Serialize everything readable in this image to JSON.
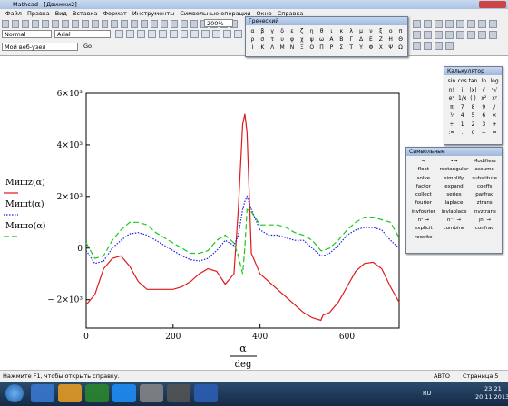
{
  "window": {
    "title": "Mathcad - [Движки2]"
  },
  "menu": [
    "Файл",
    "Правка",
    "Вид",
    "Вставка",
    "Формат",
    "Инструменты",
    "Символьные операции",
    "Окно",
    "Справка"
  ],
  "toolbar": {
    "style": "Normal",
    "font": "Arial",
    "zoom": "200%",
    "address": "Мой веб-узел",
    "go": "Go"
  },
  "palettes": {
    "greek": {
      "title": "Греческий",
      "rows": [
        [
          "α",
          "β",
          "γ",
          "δ",
          "ε",
          "ζ",
          "η",
          "θ",
          "ι",
          "κ",
          "λ",
          "μ",
          "ν",
          "ξ",
          "ο",
          "π"
        ],
        [
          "ρ",
          "σ",
          "τ",
          "υ",
          "φ",
          "χ",
          "ψ",
          "ω",
          "Α",
          "Β",
          "Γ",
          "Δ",
          "Ε",
          "Ζ",
          "Η",
          "Θ"
        ],
        [
          "Ι",
          "Κ",
          "Λ",
          "Μ",
          "Ν",
          "Ξ",
          "Ο",
          "Π",
          "Ρ",
          "Σ",
          "Τ",
          "Υ",
          "Φ",
          "Χ",
          "Ψ",
          "Ω"
        ]
      ]
    },
    "calc": {
      "title": "Калькулятор",
      "rows": [
        [
          "sin",
          "cos",
          "tan",
          "ln",
          "log"
        ],
        [
          "n!",
          "i",
          "|x|",
          "√",
          "ⁿ√"
        ],
        [
          "eˣ",
          "1/x",
          "( )",
          "x²",
          "xʸ"
        ],
        [
          "π",
          "7",
          "8",
          "9",
          "/"
        ],
        [
          "⅟",
          "4",
          "5",
          "6",
          "×"
        ],
        [
          "÷",
          "1",
          "2",
          "3",
          "+"
        ],
        [
          ":=",
          ".",
          "0",
          "−",
          "="
        ]
      ]
    },
    "symb": {
      "title": "Символьные",
      "rows": [
        [
          "→",
          "•→",
          "Modifiers"
        ],
        [
          "float",
          "rectangular",
          "assume"
        ],
        [
          "solve",
          "simplify",
          "substitute"
        ],
        [
          "factor",
          "expand",
          "coeffs"
        ],
        [
          "collect",
          "series",
          "parfrac"
        ],
        [
          "fourier",
          "laplace",
          "ztrans"
        ],
        [
          "invfourier",
          "invlaplace",
          "invztrans"
        ],
        [
          "n² →",
          "n⁻¹ →",
          "|n| →"
        ],
        [
          "explicit",
          "combine",
          "confrac"
        ],
        [
          "rewrite"
        ]
      ]
    }
  },
  "chart_data": {
    "type": "line",
    "x": [
      0,
      20,
      40,
      60,
      80,
      100,
      120,
      140,
      160,
      180,
      200,
      220,
      240,
      260,
      280,
      300,
      320,
      340,
      350,
      360,
      365,
      370,
      380,
      400,
      420,
      440,
      460,
      480,
      500,
      520,
      540,
      545,
      560,
      580,
      600,
      620,
      640,
      660,
      680,
      700,
      720
    ],
    "series": [
      {
        "name": "Мишz(α)",
        "color": "#e0181b",
        "dash": "solid",
        "values": [
          -2200,
          -1800,
          -800,
          -400,
          -300,
          -700,
          -1300,
          -1600,
          -1600,
          -1600,
          -1600,
          -1500,
          -1300,
          -1000,
          -800,
          -900,
          -1400,
          -1000,
          1500,
          4800,
          5200,
          4500,
          -200,
          -1000,
          -1300,
          -1600,
          -1900,
          -2200,
          -2500,
          -2700,
          -2800,
          -2600,
          -2500,
          -2100,
          -1500,
          -900,
          -600,
          -550,
          -800,
          -1500,
          -2100
        ]
      },
      {
        "name": "Мишt(α)",
        "color": "#1f1fe0",
        "dash": "dotted",
        "values": [
          -100,
          -600,
          -500,
          0,
          300,
          550,
          600,
          500,
          300,
          100,
          -100,
          -300,
          -450,
          -500,
          -400,
          -100,
          300,
          100,
          500,
          1500,
          1800,
          2000,
          1500,
          700,
          500,
          500,
          400,
          300,
          300,
          0,
          -300,
          -300,
          -200,
          100,
          500,
          700,
          800,
          800,
          700,
          300,
          0
        ]
      },
      {
        "name": "Мишо(α)",
        "color": "#19c819",
        "dash": "dashed",
        "values": [
          200,
          -400,
          -300,
          300,
          700,
          1000,
          1000,
          900,
          600,
          400,
          200,
          0,
          -200,
          -200,
          -100,
          300,
          500,
          200,
          -300,
          -1000,
          0,
          1500,
          1400,
          900,
          900,
          900,
          800,
          600,
          500,
          300,
          -100,
          -100,
          0,
          300,
          700,
          1000,
          1200,
          1200,
          1100,
          1000,
          400
        ]
      }
    ],
    "xlim": [
      0,
      720
    ],
    "ylim": [
      -3100,
      6000
    ],
    "xticks": [
      0,
      200,
      400,
      600
    ],
    "yticks": [
      {
        "value": -2000,
        "label": "− 2×10³"
      },
      0,
      {
        "value": 2000,
        "label": "2×10³"
      },
      {
        "value": 4000,
        "label": "4×10³"
      },
      {
        "value": 6000,
        "label": "6×10³"
      }
    ],
    "xlabel": "α",
    "xlabel_unit": "deg"
  },
  "status": {
    "hint": "Нажмите F1, чтобы открыть справку.",
    "mode": "АВТО",
    "page": "Страница 5"
  },
  "taskbar": {
    "lang": "RU",
    "time": "23:21",
    "date": "20.11.2013"
  }
}
